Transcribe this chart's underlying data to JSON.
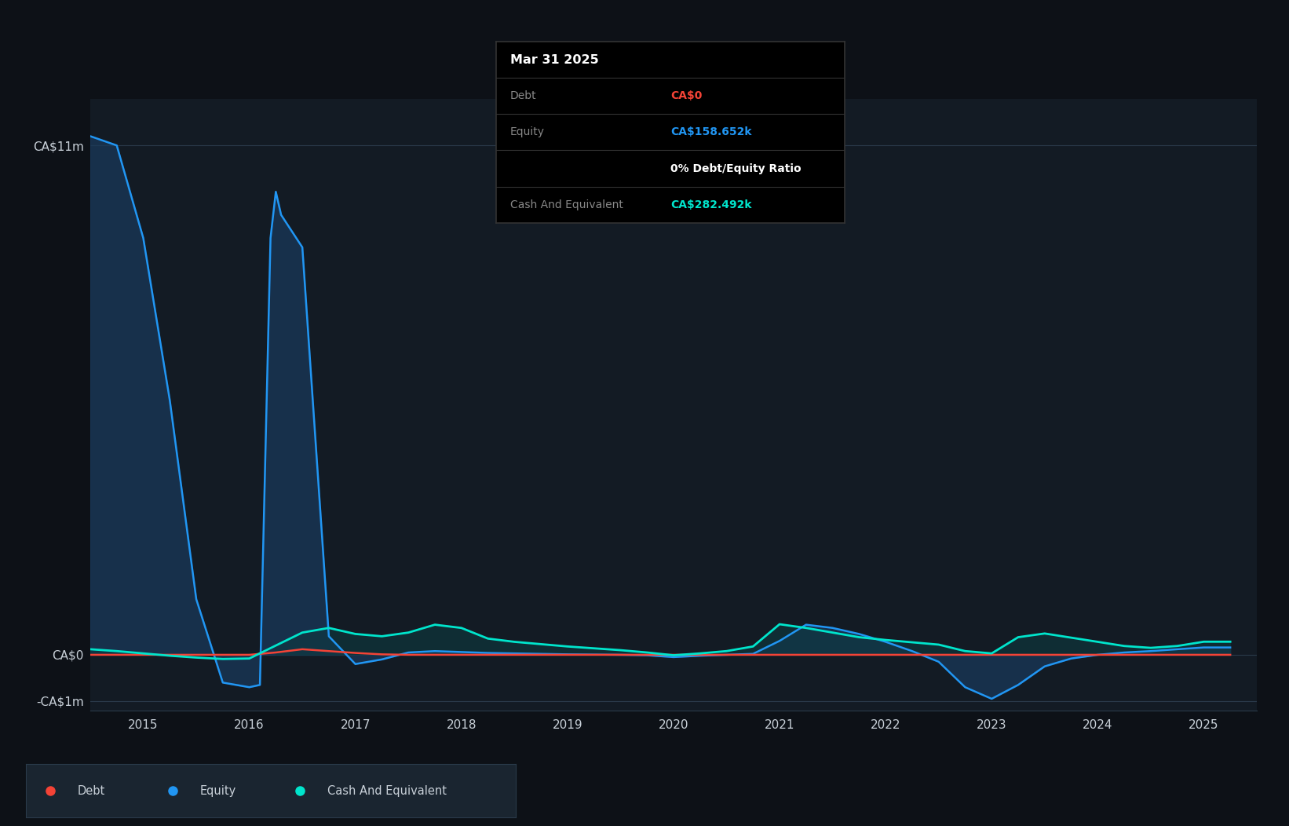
{
  "background_color": "#0d1117",
  "plot_bg_color": "#131b24",
  "grid_color": "#2a3a4a",
  "ylabel_color": "#c8d0d8",
  "equity_color": "#2196f3",
  "equity_fill_color": "#1a3a5c",
  "debt_color": "#f44336",
  "cash_color": "#00e5cc",
  "cash_fill_color": "#0d3a40",
  "legend_bg": "#1a2530",
  "tooltip_bg": "#000000",
  "tooltip_border": "#333333",
  "equity_data_x": [
    2014.5,
    2014.75,
    2015.0,
    2015.25,
    2015.5,
    2015.75,
    2016.0,
    2016.1,
    2016.2,
    2016.25,
    2016.3,
    2016.5,
    2016.75,
    2017.0,
    2017.25,
    2017.5,
    2017.75,
    2018.0,
    2018.25,
    2018.5,
    2018.75,
    2019.0,
    2019.25,
    2019.5,
    2019.75,
    2020.0,
    2020.25,
    2020.5,
    2020.75,
    2021.0,
    2021.25,
    2021.5,
    2021.75,
    2022.0,
    2022.25,
    2022.5,
    2022.75,
    2023.0,
    2023.25,
    2023.5,
    2023.75,
    2024.0,
    2024.25,
    2024.5,
    2024.75,
    2025.0,
    2025.25
  ],
  "equity_data_y": [
    11200000,
    11000000,
    9000000,
    5500000,
    1200000,
    -600000,
    -700000,
    -650000,
    9000000,
    10000000,
    9500000,
    8800000,
    400000,
    -200000,
    -100000,
    50000,
    80000,
    60000,
    40000,
    30000,
    20000,
    10000,
    5000,
    0,
    -10000,
    -50000,
    -20000,
    0,
    20000,
    300000,
    650000,
    580000,
    450000,
    280000,
    80000,
    -150000,
    -700000,
    -950000,
    -650000,
    -250000,
    -80000,
    0,
    50000,
    80000,
    120000,
    158652,
    158652
  ],
  "debt_data_x": [
    2014.5,
    2014.75,
    2015.0,
    2015.25,
    2015.5,
    2015.75,
    2016.0,
    2016.25,
    2016.5,
    2016.75,
    2017.0,
    2017.25,
    2017.5,
    2017.75,
    2018.0,
    2018.25,
    2018.5,
    2018.75,
    2019.0,
    2019.25,
    2019.5,
    2019.75,
    2020.0,
    2020.25,
    2020.5,
    2020.75,
    2021.0,
    2021.25,
    2021.5,
    2021.75,
    2022.0,
    2022.25,
    2022.5,
    2022.75,
    2023.0,
    2023.25,
    2023.5,
    2023.75,
    2024.0,
    2024.25,
    2024.5,
    2024.75,
    2025.0,
    2025.25
  ],
  "debt_data_y": [
    0,
    0,
    0,
    0,
    0,
    0,
    0,
    50000,
    120000,
    80000,
    40000,
    10000,
    0,
    0,
    0,
    0,
    0,
    0,
    0,
    0,
    0,
    0,
    0,
    0,
    0,
    0,
    0,
    0,
    0,
    0,
    0,
    0,
    0,
    0,
    0,
    0,
    0,
    0,
    0,
    0,
    0,
    0,
    0,
    0
  ],
  "cash_data_x": [
    2014.5,
    2014.75,
    2015.0,
    2015.25,
    2015.5,
    2015.75,
    2016.0,
    2016.25,
    2016.5,
    2016.75,
    2017.0,
    2017.25,
    2017.5,
    2017.75,
    2018.0,
    2018.25,
    2018.5,
    2018.75,
    2019.0,
    2019.25,
    2019.5,
    2019.75,
    2020.0,
    2020.25,
    2020.5,
    2020.75,
    2021.0,
    2021.25,
    2021.5,
    2021.75,
    2022.0,
    2022.25,
    2022.5,
    2022.75,
    2023.0,
    2023.25,
    2023.5,
    2023.75,
    2024.0,
    2024.25,
    2024.5,
    2024.75,
    2025.0,
    2025.25
  ],
  "cash_data_y": [
    120000,
    80000,
    30000,
    -20000,
    -60000,
    -90000,
    -80000,
    200000,
    480000,
    580000,
    450000,
    400000,
    480000,
    650000,
    580000,
    350000,
    280000,
    230000,
    180000,
    140000,
    100000,
    50000,
    -10000,
    30000,
    80000,
    180000,
    660000,
    580000,
    480000,
    380000,
    320000,
    270000,
    220000,
    80000,
    30000,
    380000,
    460000,
    370000,
    280000,
    190000,
    150000,
    190000,
    282492,
    282492
  ],
  "xlim": [
    2014.5,
    2025.5
  ],
  "ylim": [
    -1200000,
    12000000
  ],
  "x_tick_positions": [
    2015,
    2016,
    2017,
    2018,
    2019,
    2020,
    2021,
    2022,
    2023,
    2024,
    2025
  ],
  "y_tick_positions": [
    11000000,
    0,
    -1000000
  ],
  "y_tick_labels": [
    "CA$11m",
    "CA$0",
    "-CA$1m"
  ],
  "tooltip_date": "Mar 31 2025",
  "tooltip_debt_label": "Debt",
  "tooltip_debt_value": "CA$0",
  "tooltip_equity_label": "Equity",
  "tooltip_equity_value": "CA$158.652k",
  "tooltip_ratio": "0% Debt/Equity Ratio",
  "tooltip_cash_label": "Cash And Equivalent",
  "tooltip_cash_value": "CA$282.492k",
  "legend_items": [
    {
      "label": "Debt",
      "color": "#f44336"
    },
    {
      "label": "Equity",
      "color": "#2196f3"
    },
    {
      "label": "Cash And Equivalent",
      "color": "#00e5cc"
    }
  ]
}
